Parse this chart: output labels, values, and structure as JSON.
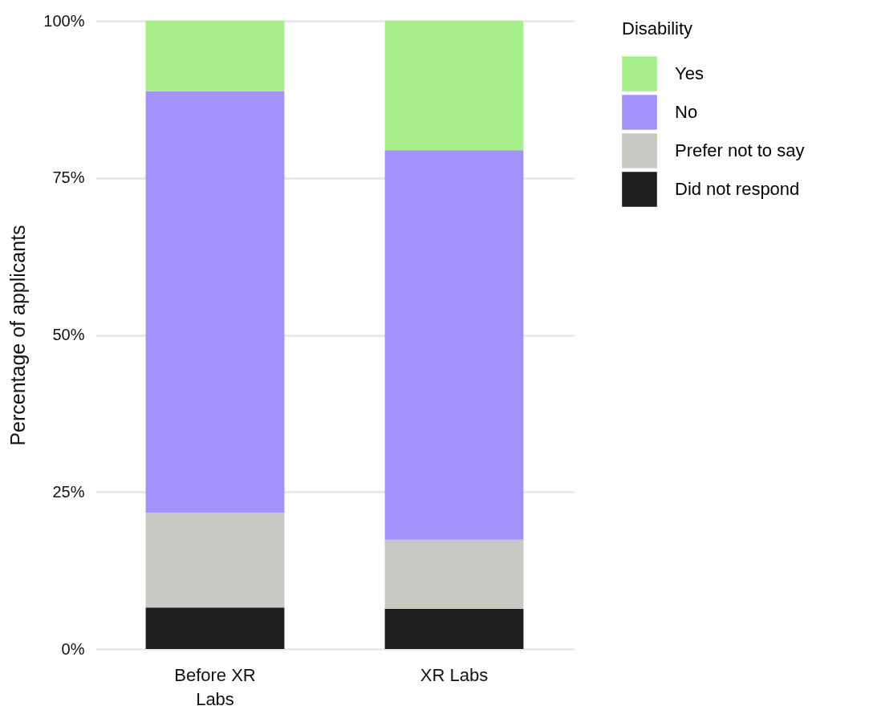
{
  "chart_data": {
    "type": "bar",
    "stacked": true,
    "categories": [
      "Before XR Labs",
      "XR Labs"
    ],
    "ylabel": "Percentage of applicants",
    "legend_title": "Disability",
    "legend": "top right",
    "grid": "y",
    "ylim": [
      0,
      100
    ],
    "yticks": [
      {
        "value": 0,
        "label": "0%"
      },
      {
        "value": 25,
        "label": "25%"
      },
      {
        "value": 50,
        "label": "50%"
      },
      {
        "value": 75,
        "label": "75%"
      },
      {
        "value": 100,
        "label": "100%"
      }
    ],
    "series": [
      {
        "name": "Did not respond",
        "color": "#1e1e1e",
        "values": [
          6.6,
          6.4
        ]
      },
      {
        "name": "Prefer not to say",
        "color": "#c8c8c3",
        "values": [
          15.1,
          11.0
        ]
      },
      {
        "name": "No",
        "color": "#a292f9",
        "values": [
          67.1,
          62.0
        ]
      },
      {
        "name": "Yes",
        "color": "#a6ef8a",
        "values": [
          11.2,
          20.6
        ]
      }
    ]
  }
}
